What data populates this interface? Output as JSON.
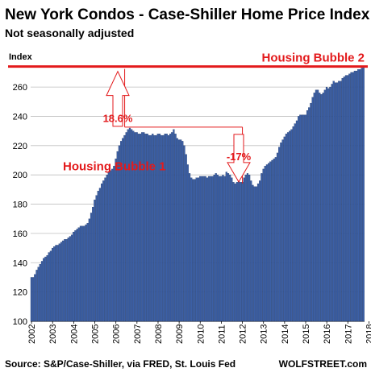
{
  "chart_data": {
    "type": "bar",
    "title": "New York Condos - Case-Shiller Home Price Index",
    "subtitle": "Not seasonally adjusted",
    "ylabel": "Index",
    "xlabel": "",
    "ylim": [
      100,
      276
    ],
    "y_ticks": [
      100,
      120,
      140,
      160,
      180,
      200,
      220,
      240,
      260
    ],
    "x_ticks": [
      "2002",
      "2003",
      "2004",
      "2005",
      "2006",
      "2007",
      "2008",
      "2009",
      "2010",
      "2011",
      "2012",
      "2013",
      "2014",
      "2015",
      "2016",
      "2017",
      "2018"
    ],
    "grid": true,
    "start": "2002-01",
    "frequency": "monthly",
    "series": [
      {
        "values": [
          130,
          130,
          132,
          135,
          137,
          139,
          141,
          143,
          144,
          145,
          147,
          148,
          150,
          151,
          152,
          152,
          153,
          154,
          155,
          156,
          156,
          157,
          158,
          159,
          161,
          162,
          163,
          164,
          165,
          165,
          165,
          166,
          167,
          170,
          174,
          178,
          183,
          186,
          189,
          191,
          194,
          196,
          198,
          200,
          202,
          203,
          204,
          206,
          211,
          216,
          220,
          223,
          225,
          227,
          229,
          231,
          232,
          231,
          230,
          229,
          229,
          228,
          228,
          229,
          229,
          228,
          228,
          227,
          227,
          228,
          227,
          227,
          228,
          228,
          227,
          227,
          228,
          228,
          227,
          228,
          229,
          231,
          228,
          225,
          224,
          224,
          223,
          220,
          214,
          207,
          201,
          198,
          197,
          197,
          198,
          198,
          199,
          199,
          199,
          199,
          198,
          199,
          199,
          199,
          200,
          201,
          200,
          199,
          199,
          200,
          199,
          202,
          201,
          200,
          198,
          195,
          194,
          195,
          196,
          195,
          195,
          198,
          200,
          201,
          200,
          196,
          193,
          192,
          192,
          194,
          196,
          201,
          204,
          206,
          207,
          208,
          209,
          210,
          211,
          212,
          215,
          219,
          222,
          224,
          226,
          228,
          229,
          230,
          231,
          233,
          235,
          237,
          240,
          241,
          241,
          241,
          241,
          244,
          246,
          249,
          253,
          256,
          258,
          258,
          256,
          255,
          256,
          258,
          260,
          259,
          260,
          262,
          264,
          263,
          263,
          264,
          264,
          266,
          267,
          268,
          268,
          269,
          270,
          270,
          271,
          271,
          272,
          272,
          273,
          274
        ]
      }
    ],
    "reference_lines": [
      {
        "label": "Housing Bubble 2",
        "value": 274
      }
    ],
    "annotations": [
      {
        "text": "18.6%"
      },
      {
        "text": "-17%"
      },
      {
        "text": "Housing Bubble 1"
      }
    ],
    "source": "Source: S&P/Case-Shiller, via FRED,  St. Louis Fed",
    "brand": "WOLFSTREET.com",
    "colors": {
      "bar_fill": "#3b5fa6",
      "bar_edge": "#1c3566",
      "reference": "#e31a1c",
      "annotation": "#e31a1c",
      "grid": "#bfbfbf"
    }
  }
}
